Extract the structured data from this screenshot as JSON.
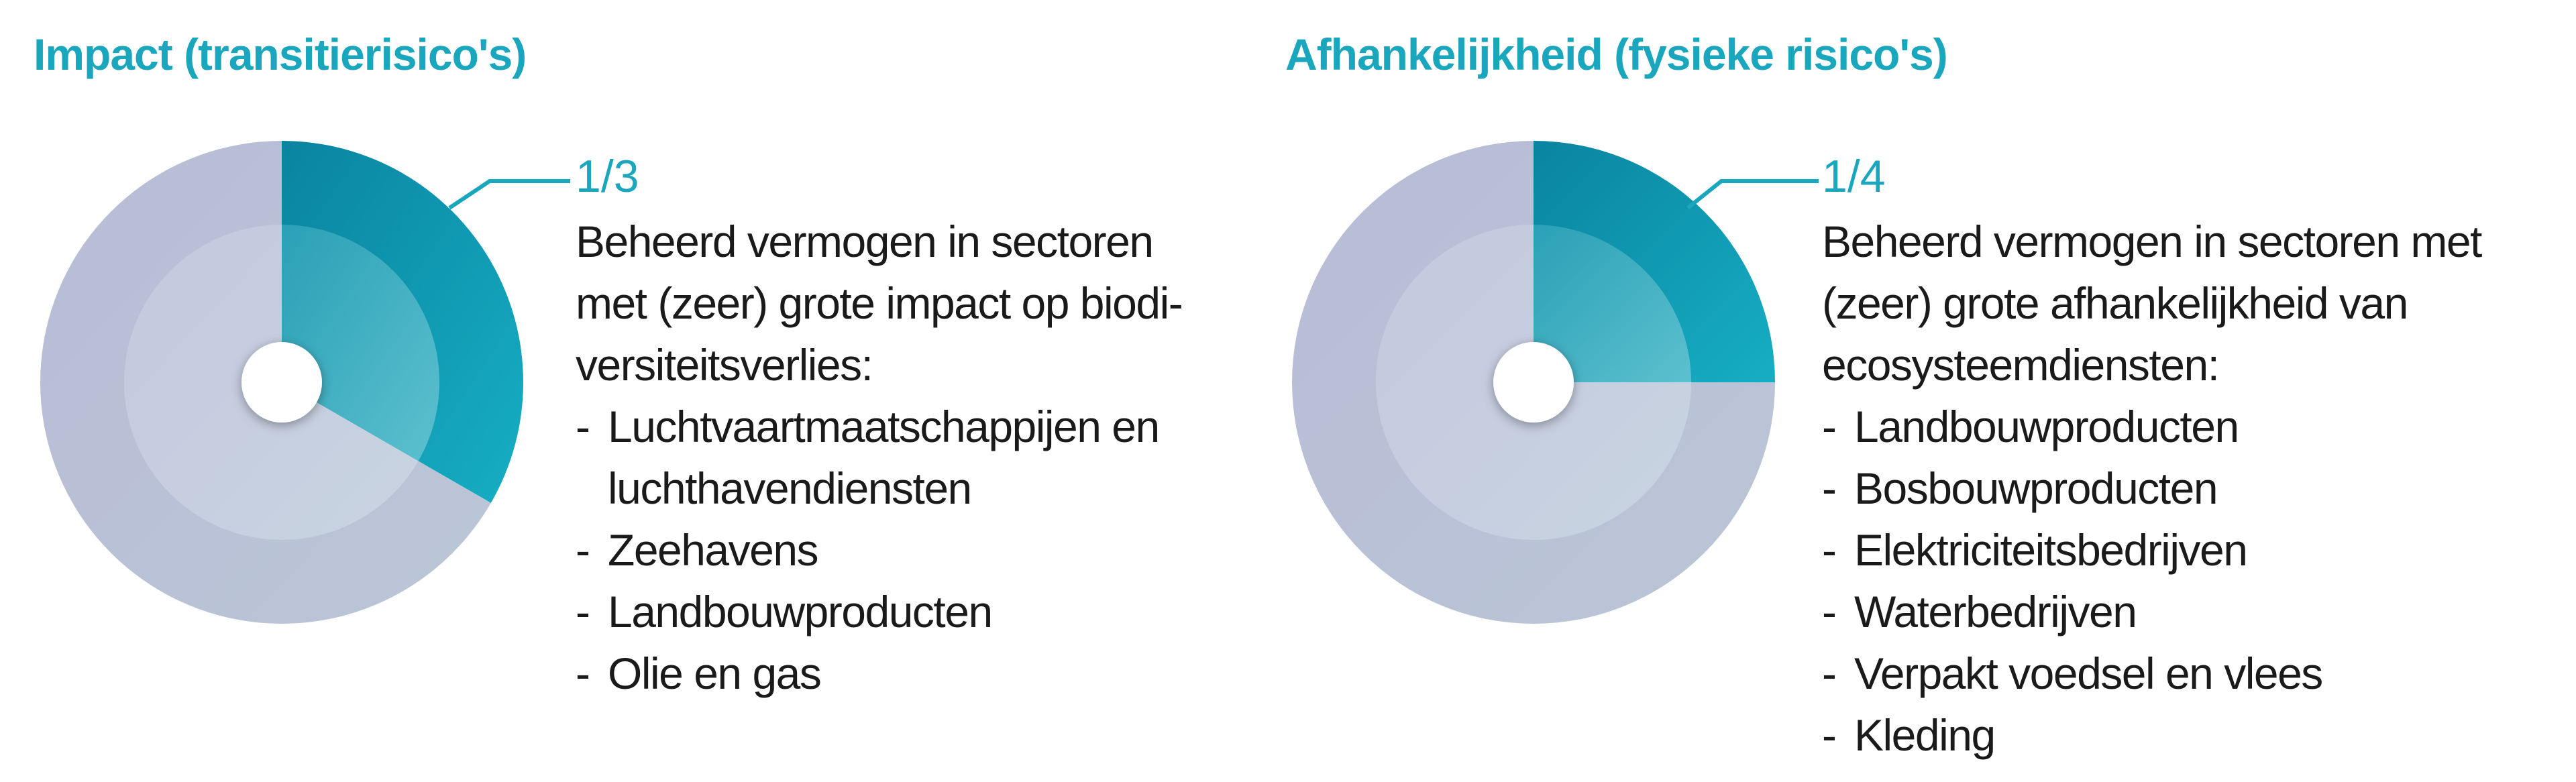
{
  "chart_data": [
    {
      "type": "pie",
      "title": "Impact (transitierisico's)",
      "highlight_fraction_label": "1/3",
      "slices": [
        {
          "label": "1/3",
          "value": 0.3333,
          "color": "#0f9cb5"
        },
        {
          "label": "",
          "value": 0.6667,
          "color": "#b9c0d6"
        }
      ],
      "description_lines": [
        "Beheerd vermogen in sectoren",
        "met (zeer) grote impact op biodi-",
        "versiteitsverlies:"
      ],
      "sectors": [
        {
          "lines": [
            "Luchtvaartmaatschappijen en",
            "luchthavendiensten"
          ]
        },
        {
          "lines": [
            "Zeehavens"
          ]
        },
        {
          "lines": [
            "Landbouwproducten"
          ]
        },
        {
          "lines": [
            "Olie en gas"
          ]
        }
      ]
    },
    {
      "type": "pie",
      "title": "Afhankelijkheid (fysieke risico's)",
      "highlight_fraction_label": "1/4",
      "slices": [
        {
          "label": "1/4",
          "value": 0.25,
          "color": "#0f9cb5"
        },
        {
          "label": "",
          "value": 0.75,
          "color": "#b9c0d6"
        }
      ],
      "description_lines": [
        "Beheerd vermogen in sectoren met",
        "(zeer) grote afhankelijkheid van",
        "ecosysteemdiensten:"
      ],
      "sectors": [
        {
          "lines": [
            "Landbouwproducten"
          ]
        },
        {
          "lines": [
            "Bosbouwproducten"
          ]
        },
        {
          "lines": [
            "Elektriciteitsbedrijven"
          ]
        },
        {
          "lines": [
            "Waterbedrijven"
          ]
        },
        {
          "lines": [
            "Verpakt voedsel en vlees"
          ]
        },
        {
          "lines": [
            "Kleding"
          ]
        }
      ]
    }
  ],
  "list_bullet": "-"
}
